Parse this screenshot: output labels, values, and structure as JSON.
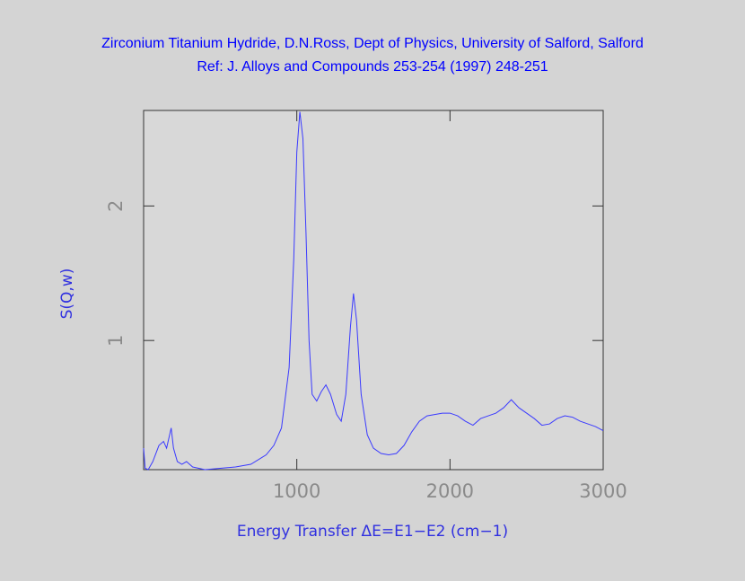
{
  "chart_data": {
    "type": "line",
    "title": "Zirconium Titanium Hydride, D.N.Ross, Dept of Physics, University of Salford, Salford",
    "subtitle": "Ref: J. Alloys and Compounds 253-254 (1997) 248-251",
    "x_label": "Energy Transfer ΔE=E1−E2 (cm−1)",
    "y_label": "S(Q,w)",
    "x": [
      0,
      10,
      30,
      60,
      100,
      130,
      150,
      170,
      180,
      195,
      220,
      250,
      280,
      320,
      400,
      500,
      600,
      700,
      800,
      850,
      900,
      950,
      980,
      1000,
      1020,
      1040,
      1060,
      1080,
      1100,
      1130,
      1160,
      1190,
      1220,
      1260,
      1290,
      1320,
      1350,
      1370,
      1390,
      1420,
      1460,
      1500,
      1550,
      1600,
      1650,
      1700,
      1750,
      1800,
      1850,
      1900,
      1950,
      2000,
      2050,
      2100,
      2150,
      2200,
      2250,
      2300,
      2350,
      2400,
      2450,
      2500,
      2550,
      2600,
      2650,
      2700,
      2750,
      2800,
      2850,
      2900,
      2950,
      3000
    ],
    "values": [
      0.2,
      0.05,
      0.04,
      0.1,
      0.22,
      0.25,
      0.2,
      0.3,
      0.35,
      0.2,
      0.1,
      0.08,
      0.1,
      0.06,
      0.04,
      0.05,
      0.06,
      0.08,
      0.15,
      0.22,
      0.35,
      0.8,
      1.6,
      2.4,
      2.7,
      2.5,
      1.8,
      1.0,
      0.6,
      0.55,
      0.62,
      0.67,
      0.6,
      0.45,
      0.4,
      0.6,
      1.1,
      1.35,
      1.15,
      0.6,
      0.3,
      0.2,
      0.16,
      0.15,
      0.16,
      0.22,
      0.32,
      0.4,
      0.44,
      0.45,
      0.46,
      0.46,
      0.44,
      0.4,
      0.37,
      0.42,
      0.44,
      0.46,
      0.5,
      0.56,
      0.5,
      0.46,
      0.42,
      0.37,
      0.38,
      0.42,
      0.44,
      0.43,
      0.4,
      0.38,
      0.36,
      0.33
    ],
    "color": "#3a3aff",
    "xlim": [
      0,
      3000
    ],
    "xticks": [
      1000,
      2000,
      3000
    ],
    "ylim": [
      0.04,
      2.71
    ],
    "yticks": [
      1,
      2
    ]
  }
}
